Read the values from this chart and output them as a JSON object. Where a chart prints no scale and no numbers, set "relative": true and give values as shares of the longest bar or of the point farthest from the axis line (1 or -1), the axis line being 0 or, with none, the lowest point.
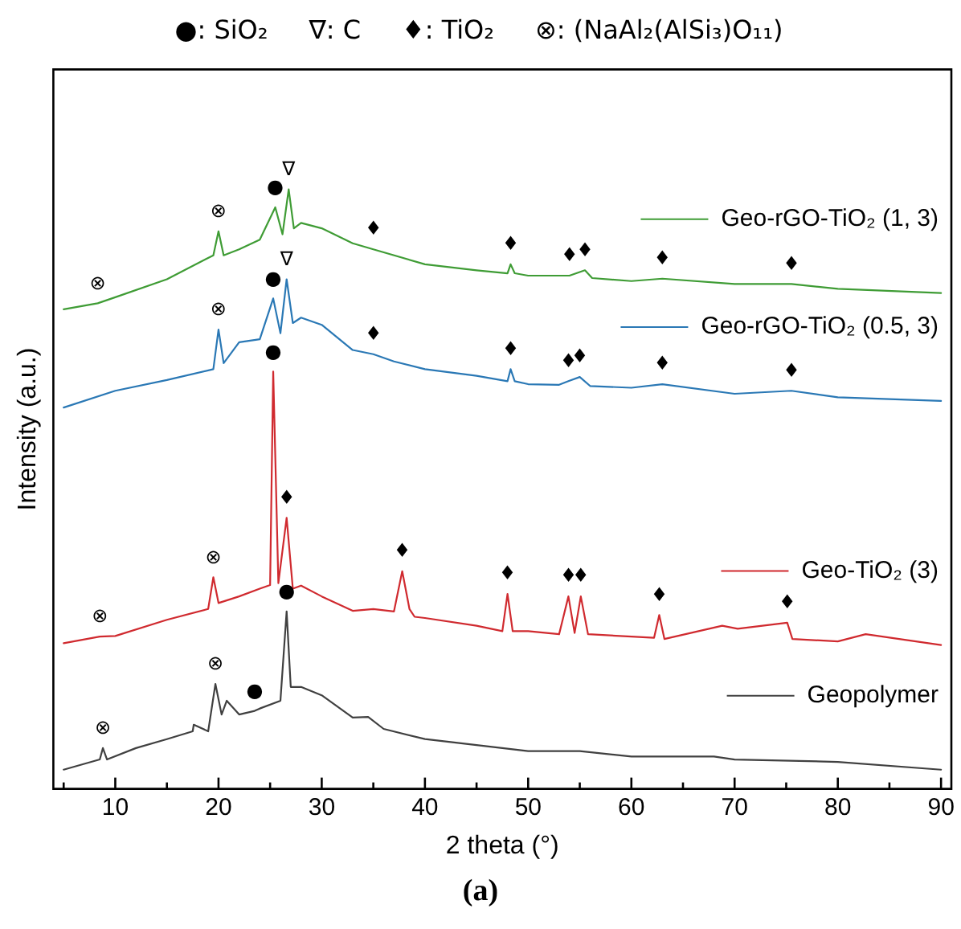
{
  "chart_data": {
    "type": "line",
    "title": "●: SiO₂     ∇: C     ♦: TiO₂     ⊗: (NaAl₂(AlSi₃)O₁₁)",
    "xlabel": "2 theta (°)",
    "ylabel": "Intensity (a.u.)",
    "relative": true,
    "legend": "right",
    "grid": false,
    "marker": "none",
    "line_style": "solid",
    "xlim": [
      4,
      91
    ],
    "xticks": [
      {
        "value": 5,
        "label": null
      },
      10,
      {
        "value": 15,
        "label": null
      },
      20,
      {
        "value": 25,
        "label": null
      },
      30,
      {
        "value": 35,
        "label": null
      },
      40,
      {
        "value": 45,
        "label": null
      },
      50,
      {
        "value": 55,
        "label": null
      },
      60,
      {
        "value": 65,
        "label": null
      },
      70,
      {
        "value": 75,
        "label": null
      },
      80,
      {
        "value": 85,
        "label": null
      },
      90
    ],
    "series": [
      {
        "name": "Geo-rGO-TiO₂ (1, 3)",
        "color": "#3f9c35",
        "x": [
          5,
          8.3,
          10,
          15,
          19.5,
          20,
          20.5,
          22,
          24,
          25.5,
          26.2,
          26.8,
          27.3,
          28,
          30,
          33,
          35,
          40,
          45,
          48,
          48.3,
          48.7,
          50,
          54,
          55.5,
          56.2,
          60,
          63,
          70,
          75.5,
          80,
          90
        ],
        "values": [
          0.8,
          0.81,
          0.82,
          0.85,
          0.89,
          0.93,
          0.89,
          0.9,
          0.916,
          0.97,
          0.925,
          1,
          0.935,
          0.944,
          0.935,
          0.91,
          0.9,
          0.875,
          0.865,
          0.86,
          0.875,
          0.86,
          0.856,
          0.856,
          0.865,
          0.852,
          0.847,
          0.851,
          0.842,
          0.842,
          0.834,
          0.827
        ]
      },
      {
        "name": "Geo-rGO-TiO₂ (0.5, 3)",
        "color": "#2a78b5",
        "x": [
          5,
          10,
          15,
          19.5,
          20,
          20.5,
          22,
          24,
          25.3,
          26,
          26.6,
          27.2,
          28,
          30,
          33,
          35,
          37,
          40,
          45,
          48,
          48.3,
          48.7,
          50,
          53,
          53.9,
          55,
          56,
          60,
          63,
          70,
          75.5,
          80,
          90
        ],
        "values": [
          0.636,
          0.664,
          0.682,
          0.7,
          0.766,
          0.71,
          0.745,
          0.75,
          0.818,
          0.76,
          0.85,
          0.777,
          0.786,
          0.774,
          0.732,
          0.725,
          0.713,
          0.7,
          0.689,
          0.68,
          0.7,
          0.68,
          0.675,
          0.674,
          0.68,
          0.687,
          0.672,
          0.669,
          0.675,
          0.659,
          0.664,
          0.653,
          0.647
        ]
      },
      {
        "name": "Geo-TiO₂ (3)",
        "color": "#d02a2f",
        "x": [
          5,
          8.5,
          10,
          15,
          19,
          19.5,
          20,
          22,
          24,
          25,
          25.3,
          25.8,
          26.6,
          27.2,
          28,
          30,
          33,
          35,
          37,
          37.8,
          38.5,
          39,
          40,
          45,
          47.5,
          48,
          48.5,
          50,
          53,
          53.9,
          54.5,
          55.1,
          55.8,
          60,
          62.2,
          62.7,
          63.2,
          68.8,
          70.3,
          75.1,
          75.6,
          80,
          82.7,
          90
        ],
        "values": [
          0.243,
          0.254,
          0.255,
          0.282,
          0.3,
          0.353,
          0.31,
          0.321,
          0.334,
          0.34,
          0.696,
          0.343,
          0.452,
          0.334,
          0.339,
          0.321,
          0.297,
          0.3,
          0.296,
          0.363,
          0.3,
          0.287,
          0.285,
          0.272,
          0.263,
          0.325,
          0.263,
          0.263,
          0.258,
          0.321,
          0.26,
          0.321,
          0.258,
          0.254,
          0.252,
          0.29,
          0.25,
          0.272,
          0.267,
          0.277,
          0.25,
          0.246,
          0.258,
          0.24
        ]
      },
      {
        "name": "Geopolymer",
        "color": "#404040",
        "x": [
          5,
          8.5,
          8.8,
          9.2,
          12,
          15,
          17.5,
          17.6,
          19,
          19.7,
          20.3,
          20.8,
          22,
          23.5,
          24,
          26,
          26.6,
          27,
          28,
          30,
          33,
          34.5,
          36,
          40,
          45,
          50,
          55,
          60,
          68,
          70,
          80,
          90
        ],
        "values": [
          0.032,
          0.049,
          0.068,
          0.049,
          0.068,
          0.083,
          0.096,
          0.107,
          0.096,
          0.175,
          0.124,
          0.147,
          0.124,
          0.13,
          0.134,
          0.147,
          0.296,
          0.17,
          0.17,
          0.156,
          0.119,
          0.12,
          0.1,
          0.083,
          0.073,
          0.063,
          0.063,
          0.054,
          0.054,
          0.049,
          0.045,
          0.032
        ]
      }
    ],
    "annotations": [
      {
        "text": "⊗",
        "x": 8.3,
        "y": 0.81
      },
      {
        "text": "⊗",
        "x": 20,
        "y": 0.93
      },
      {
        "text": "●",
        "x": 25.5,
        "y": 0.97
      },
      {
        "text": "∇",
        "x": 26.8,
        "y": 1
      },
      {
        "text": "♦",
        "x": 35,
        "y": 0.9
      },
      {
        "text": "♦",
        "x": 48.3,
        "y": 0.875
      },
      {
        "text": "♦",
        "x": 54,
        "y": 0.856
      },
      {
        "text": "♦",
        "x": 55.5,
        "y": 0.865
      },
      {
        "text": "♦",
        "x": 63,
        "y": 0.851
      },
      {
        "text": "♦",
        "x": 75.5,
        "y": 0.842
      },
      {
        "text": "⊗",
        "x": 20,
        "y": 0.766
      },
      {
        "text": "●",
        "x": 25.3,
        "y": 0.818
      },
      {
        "text": "∇",
        "x": 26.6,
        "y": 0.85
      },
      {
        "text": "♦",
        "x": 35,
        "y": 0.725
      },
      {
        "text": "♦",
        "x": 48.3,
        "y": 0.7
      },
      {
        "text": "♦",
        "x": 53.9,
        "y": 0.68
      },
      {
        "text": "♦",
        "x": 55,
        "y": 0.687
      },
      {
        "text": "♦",
        "x": 63,
        "y": 0.675
      },
      {
        "text": "♦",
        "x": 75.5,
        "y": 0.664
      },
      {
        "text": "●",
        "x": 25.3,
        "y": 0.696
      },
      {
        "text": "♦",
        "x": 26.6,
        "y": 0.452
      },
      {
        "text": "⊗",
        "x": 19.5,
        "y": 0.353
      },
      {
        "text": "⊗",
        "x": 8.5,
        "y": 0.254
      },
      {
        "text": "♦",
        "x": 37.8,
        "y": 0.363
      },
      {
        "text": "♦",
        "x": 48,
        "y": 0.325
      },
      {
        "text": "♦",
        "x": 53.9,
        "y": 0.321
      },
      {
        "text": "♦",
        "x": 55.1,
        "y": 0.321
      },
      {
        "text": "♦",
        "x": 62.7,
        "y": 0.29
      },
      {
        "text": "♦",
        "x": 75.1,
        "y": 0.277
      },
      {
        "text": "●",
        "x": 26.6,
        "y": 0.296
      },
      {
        "text": "⊗",
        "x": 19.7,
        "y": 0.175
      },
      {
        "text": "●",
        "x": 23.5,
        "y": 0.13
      },
      {
        "text": "⊗",
        "x": 8.8,
        "y": 0.068
      },
      "(a)"
    ]
  }
}
